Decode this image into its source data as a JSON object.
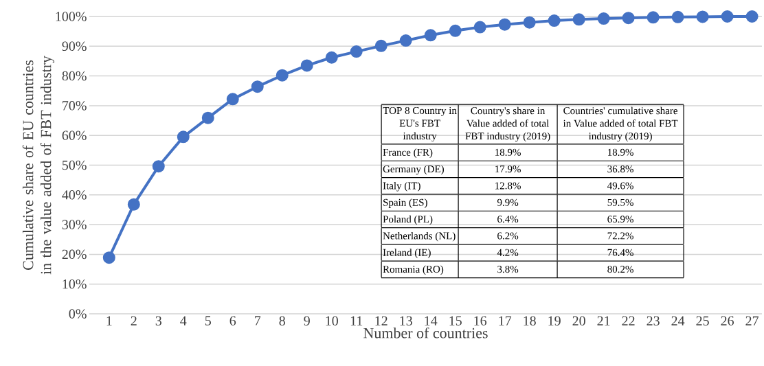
{
  "chart_data": {
    "type": "line",
    "xlabel": "Number of countries",
    "ylabel": "Cumulative share of EU countries in the value added of FBT industry",
    "categories": [
      "1",
      "2",
      "3",
      "4",
      "5",
      "6",
      "7",
      "8",
      "9",
      "10",
      "11",
      "12",
      "13",
      "14",
      "15",
      "16",
      "17",
      "18",
      "19",
      "20",
      "21",
      "22",
      "23",
      "24",
      "25",
      "26",
      "27"
    ],
    "series": [
      {
        "color": "#4472c4",
        "values": [
          18.9,
          36.8,
          49.6,
          59.5,
          65.9,
          72.2,
          76.4,
          80.2,
          83.5,
          86.2,
          88.2,
          90.1,
          91.9,
          93.7,
          95.2,
          96.4,
          97.3,
          98.0,
          98.6,
          99.0,
          99.3,
          99.5,
          99.7,
          99.8,
          99.9,
          100,
          100
        ]
      }
    ],
    "ylim": [
      0,
      100
    ],
    "yticks": [
      {
        "value": 0,
        "label": "0%"
      },
      {
        "value": 10,
        "label": "10%"
      },
      {
        "value": 20,
        "label": "20%"
      },
      {
        "value": 30,
        "label": "30%"
      },
      {
        "value": 40,
        "label": "40%"
      },
      {
        "value": 50,
        "label": "50%"
      },
      {
        "value": 60,
        "label": "60%"
      },
      {
        "value": 70,
        "label": "70%"
      },
      {
        "value": 80,
        "label": "80%"
      },
      {
        "value": 90,
        "label": "90%"
      },
      {
        "value": 100,
        "label": "100%"
      }
    ],
    "grid": "y",
    "marker": "circle",
    "line_style": "solid",
    "annotations": [
      "TOP 8 Country in EU's FBT industry",
      "Country's share in Value added of total FBT industry (2019)",
      "Countries' cumulative share in Value added of total FBT industry (2019)",
      "France (FR)",
      "18.9%",
      "18.9%",
      "Germany (DE)",
      "17.9%",
      "36.8%",
      "Italy (IT)",
      "12.8%",
      "49.6%",
      "Spain (ES)",
      "9.9%",
      "59.5%",
      "Poland (PL)",
      "6.4%",
      "65.9%",
      "Netherlands (NL)",
      "6.2%",
      "72.2%",
      "Ireland (IE)",
      "4.2%",
      "76.4%",
      "Romania (RO)",
      "3.8%",
      "80.2%"
    ]
  }
}
